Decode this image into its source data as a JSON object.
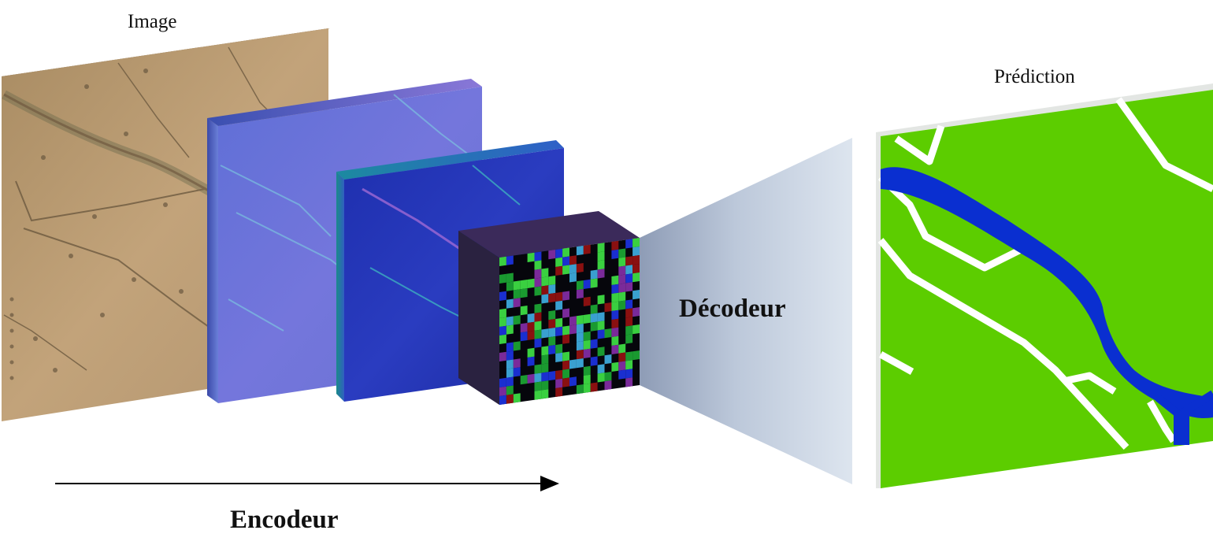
{
  "labels": {
    "input_image": "Image",
    "prediction": "Prédiction",
    "encoder": "Encodeur",
    "decoder": "Décodeur"
  },
  "colors": {
    "parchment": "#b89a70",
    "feature_blue": "#6f74d8",
    "feature_deep": "#1b2fb0",
    "prediction_green": "#5ccd00",
    "river_blue": "#0a2fd0",
    "road_white": "#ffffff",
    "decoder_fade": "#c3cfe0",
    "arrow": "#000000"
  },
  "icons": {
    "encoder_arrow": "arrow-right"
  }
}
